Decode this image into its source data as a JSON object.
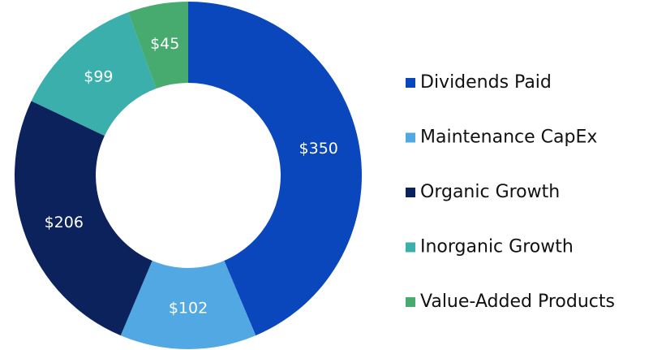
{
  "chart_data": {
    "type": "donut",
    "categories": [
      "Dividends Paid",
      "Maintenance CapEx",
      "Organic Growth",
      "Inorganic Growth",
      "Value-Added Products"
    ],
    "values": [
      350,
      102,
      206,
      99,
      45
    ],
    "value_labels": [
      "$350",
      "$102",
      "$206",
      "$99",
      "$45"
    ],
    "colors": [
      "#0a47bd",
      "#52a8e2",
      "#0b225d",
      "#3aafac",
      "#47aa6f"
    ],
    "legend": "right"
  }
}
